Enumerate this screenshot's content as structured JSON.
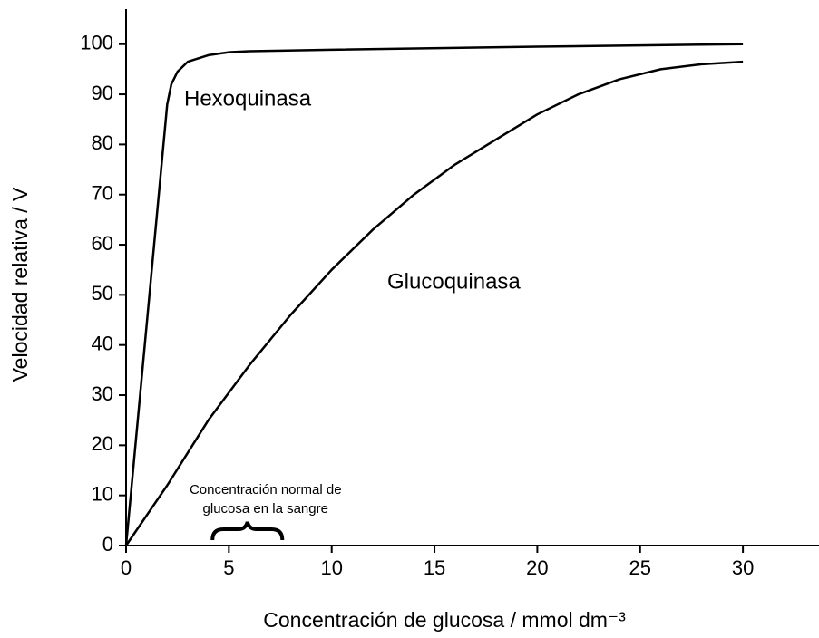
{
  "chart_data": {
    "type": "line",
    "x_label": "Concentración de glucosa / mmol dm⁻³",
    "y_label": "Velocidad relativa / V",
    "xlim": [
      0,
      33.7
    ],
    "ylim": [
      0,
      107
    ],
    "xticks": [
      0,
      5,
      10,
      15,
      20,
      25,
      30
    ],
    "yticks": [
      0,
      10,
      20,
      30,
      40,
      50,
      60,
      70,
      80,
      90,
      100
    ],
    "grid": false,
    "series": [
      {
        "name": "Hexoquinasa",
        "color": "#000000",
        "x": [
          0,
          1,
          2,
          2.2,
          2.5,
          3,
          4,
          5,
          6,
          10,
          20,
          30
        ],
        "values": [
          0,
          44,
          88,
          92,
          94.5,
          96.5,
          97.8,
          98.4,
          98.6,
          98.9,
          99.5,
          100
        ]
      },
      {
        "name": "Glucoquinasa",
        "color": "#000000",
        "x": [
          0,
          2,
          4,
          6,
          8,
          10,
          12,
          14,
          16,
          18,
          20,
          22,
          24,
          26,
          28,
          30
        ],
        "values": [
          0,
          12,
          25,
          36,
          46,
          55,
          63,
          70,
          76,
          81,
          86,
          90,
          93,
          95,
          96,
          96.5
        ]
      }
    ],
    "annotation": {
      "lines": [
        "Concentración normal de",
        "glucosa en la sangre"
      ],
      "x_range": [
        4.2,
        7.6
      ]
    }
  }
}
